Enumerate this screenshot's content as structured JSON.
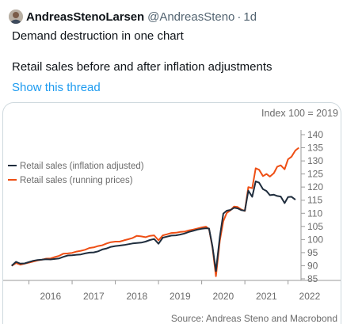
{
  "tweet": {
    "author_name": "AndreasStenoLarsen",
    "handle": "@AndreasSteno",
    "separator": "·",
    "time": "1d",
    "line1": "Demand destruction in one chart",
    "line2": "Retail sales before and after inflation adjustments",
    "show_thread": "Show this thread"
  },
  "chart_data": {
    "type": "line",
    "title": "",
    "index_note": "Index 100 = 2019",
    "source": "Source: Andreas Steno and Macrobond",
    "x_ticks": [
      "2016",
      "2017",
      "2018",
      "2019",
      "2020",
      "2021",
      "2022"
    ],
    "y_ticks": [
      "85",
      "90",
      "95",
      "100",
      "105",
      "110",
      "115",
      "120",
      "125",
      "130",
      "135",
      "140"
    ],
    "ylim": [
      85,
      140
    ],
    "xlim": [
      2015.55,
      2022.3
    ],
    "legend_position": "left",
    "series": [
      {
        "name": "Retail sales (inflation adjusted)",
        "color": "#1f2d3d",
        "points": [
          [
            2015.6,
            90
          ],
          [
            2015.7,
            91.5
          ],
          [
            2015.8,
            90.8
          ],
          [
            2015.9,
            90.9
          ],
          [
            2016.0,
            91.4
          ],
          [
            2016.1,
            91.9
          ],
          [
            2016.2,
            92.2
          ],
          [
            2016.3,
            92.3
          ],
          [
            2016.4,
            92.5
          ],
          [
            2016.5,
            92.4
          ],
          [
            2016.6,
            92.6
          ],
          [
            2016.7,
            92.8
          ],
          [
            2016.8,
            93.4
          ],
          [
            2016.9,
            93.9
          ],
          [
            2017.0,
            94.0
          ],
          [
            2017.1,
            94.2
          ],
          [
            2017.2,
            94.3
          ],
          [
            2017.3,
            94.7
          ],
          [
            2017.4,
            95.0
          ],
          [
            2017.5,
            95.1
          ],
          [
            2017.6,
            95.5
          ],
          [
            2017.7,
            96.2
          ],
          [
            2017.8,
            96.6
          ],
          [
            2017.9,
            97.2
          ],
          [
            2018.0,
            97.5
          ],
          [
            2018.1,
            97.7
          ],
          [
            2018.2,
            97.9
          ],
          [
            2018.3,
            98.2
          ],
          [
            2018.4,
            98.5
          ],
          [
            2018.5,
            98.7
          ],
          [
            2018.6,
            98.8
          ],
          [
            2018.7,
            99.2
          ],
          [
            2018.8,
            99.8
          ],
          [
            2018.9,
            100.2
          ],
          [
            2019.0,
            98.4
          ],
          [
            2019.1,
            100.7
          ],
          [
            2019.2,
            101.1
          ],
          [
            2019.3,
            101.5
          ],
          [
            2019.4,
            101.6
          ],
          [
            2019.5,
            101.9
          ],
          [
            2019.6,
            102.3
          ],
          [
            2019.7,
            102.9
          ],
          [
            2019.8,
            103.3
          ],
          [
            2019.9,
            103.8
          ],
          [
            2020.0,
            104.1
          ],
          [
            2020.1,
            104.3
          ],
          [
            2020.17,
            104.2
          ],
          [
            2020.25,
            97.4
          ],
          [
            2020.33,
            88.0
          ],
          [
            2020.42,
            101.0
          ],
          [
            2020.5,
            109.9
          ],
          [
            2020.58,
            111.0
          ],
          [
            2020.67,
            111.3
          ],
          [
            2020.75,
            112.1
          ],
          [
            2020.83,
            111.9
          ],
          [
            2020.92,
            111.2
          ],
          [
            2021.0,
            111.0
          ],
          [
            2021.08,
            118.6
          ],
          [
            2021.17,
            116.3
          ],
          [
            2021.25,
            122.2
          ],
          [
            2021.33,
            121.7
          ],
          [
            2021.42,
            119.2
          ],
          [
            2021.5,
            118.5
          ],
          [
            2021.58,
            116.9
          ],
          [
            2021.67,
            117.1
          ],
          [
            2021.75,
            116.6
          ],
          [
            2021.83,
            116.4
          ],
          [
            2021.92,
            113.9
          ],
          [
            2022.0,
            116.2
          ],
          [
            2022.08,
            116.3
          ],
          [
            2022.17,
            115.2
          ]
        ]
      },
      {
        "name": "Retail sales (running prices)",
        "color": "#ee4f15",
        "points": [
          [
            2015.6,
            90
          ],
          [
            2015.7,
            91.0
          ],
          [
            2015.8,
            90.4
          ],
          [
            2015.9,
            90.8
          ],
          [
            2016.0,
            91.2
          ],
          [
            2016.1,
            91.6
          ],
          [
            2016.2,
            92.0
          ],
          [
            2016.3,
            92.3
          ],
          [
            2016.4,
            92.7
          ],
          [
            2016.5,
            92.8
          ],
          [
            2016.6,
            93.3
          ],
          [
            2016.7,
            93.8
          ],
          [
            2016.8,
            94.6
          ],
          [
            2016.9,
            94.7
          ],
          [
            2017.0,
            94.9
          ],
          [
            2017.1,
            95.4
          ],
          [
            2017.2,
            95.7
          ],
          [
            2017.3,
            96.1
          ],
          [
            2017.4,
            96.8
          ],
          [
            2017.5,
            97.0
          ],
          [
            2017.6,
            97.5
          ],
          [
            2017.7,
            97.8
          ],
          [
            2017.8,
            98.5
          ],
          [
            2017.9,
            99.0
          ],
          [
            2018.0,
            99.2
          ],
          [
            2018.1,
            99.2
          ],
          [
            2018.2,
            99.7
          ],
          [
            2018.3,
            100.1
          ],
          [
            2018.4,
            100.6
          ],
          [
            2018.5,
            101.4
          ],
          [
            2018.6,
            101.2
          ],
          [
            2018.7,
            100.9
          ],
          [
            2018.8,
            101.4
          ],
          [
            2018.9,
            101.6
          ],
          [
            2019.0,
            99.7
          ],
          [
            2019.1,
            101.6
          ],
          [
            2019.2,
            102.0
          ],
          [
            2019.3,
            102.5
          ],
          [
            2019.4,
            102.6
          ],
          [
            2019.5,
            102.9
          ],
          [
            2019.6,
            103.0
          ],
          [
            2019.7,
            103.5
          ],
          [
            2019.8,
            103.8
          ],
          [
            2019.9,
            104.2
          ],
          [
            2020.0,
            104.6
          ],
          [
            2020.1,
            104.9
          ],
          [
            2020.17,
            104.0
          ],
          [
            2020.25,
            97.0
          ],
          [
            2020.33,
            86.0
          ],
          [
            2020.42,
            99.5
          ],
          [
            2020.5,
            107.0
          ],
          [
            2020.58,
            110.1
          ],
          [
            2020.67,
            111.2
          ],
          [
            2020.75,
            112.6
          ],
          [
            2020.83,
            112.4
          ],
          [
            2020.92,
            111.4
          ],
          [
            2021.0,
            110.9
          ],
          [
            2021.08,
            120.0
          ],
          [
            2021.17,
            119.6
          ],
          [
            2021.25,
            127.2
          ],
          [
            2021.33,
            126.6
          ],
          [
            2021.42,
            124.2
          ],
          [
            2021.5,
            125.0
          ],
          [
            2021.58,
            124.0
          ],
          [
            2021.67,
            125.3
          ],
          [
            2021.75,
            127.8
          ],
          [
            2021.83,
            128.3
          ],
          [
            2021.92,
            126.8
          ],
          [
            2022.0,
            130.6
          ],
          [
            2022.08,
            131.6
          ],
          [
            2022.17,
            134.0
          ],
          [
            2022.25,
            135.0
          ]
        ]
      }
    ]
  }
}
